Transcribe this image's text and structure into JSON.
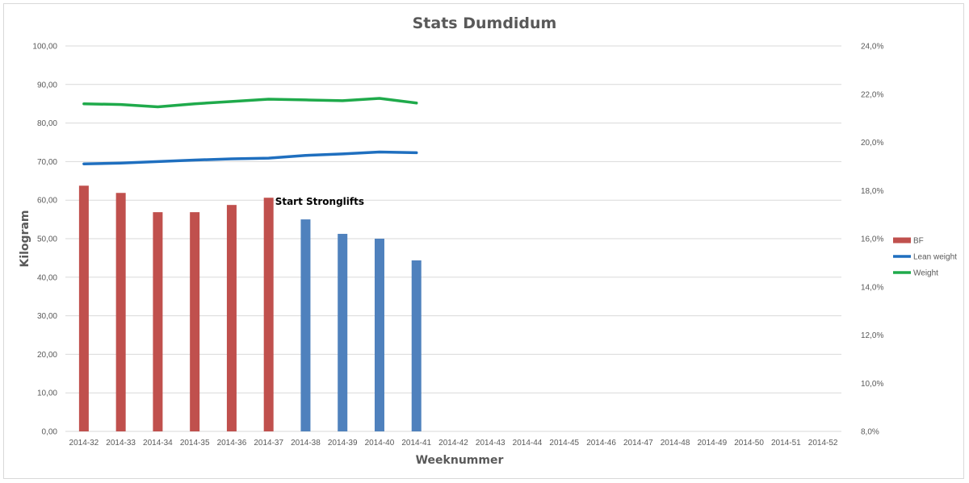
{
  "chart_data": {
    "type": "bar",
    "title": "Stats Dumdidum",
    "xlabel": "Weeknummer",
    "ylabel": "Kilogram",
    "categories": [
      "2014-32",
      "2014-33",
      "2014-34",
      "2014-35",
      "2014-36",
      "2014-37",
      "2014-38",
      "2014-39",
      "2014-40",
      "2014-41",
      "2014-42",
      "2014-43",
      "2014-44",
      "2014-45",
      "2014-46",
      "2014-47",
      "2014-48",
      "2014-49",
      "2014-50",
      "2014-51",
      "2014-52"
    ],
    "ylim": [
      0,
      100
    ],
    "y_ticks": [
      "0,00",
      "10,00",
      "20,00",
      "30,00",
      "40,00",
      "50,00",
      "60,00",
      "70,00",
      "80,00",
      "90,00",
      "100,00"
    ],
    "y2lim": [
      0.08,
      0.24
    ],
    "y2_ticks": [
      "8,0%",
      "10,0%",
      "12,0%",
      "14,0%",
      "16,0%",
      "18,0%",
      "20,0%",
      "22,0%",
      "24,0%"
    ],
    "grid": true,
    "legend_position": "right",
    "series": [
      {
        "name": "BF",
        "type": "bar",
        "axis": "secondary",
        "values": [
          0.182,
          0.179,
          0.171,
          0.171,
          0.174,
          0.177,
          0.168,
          0.162,
          0.16,
          0.151,
          null,
          null,
          null,
          null,
          null,
          null,
          null,
          null,
          null,
          null,
          null
        ],
        "bar_colors": [
          "#c0504d",
          "#c0504d",
          "#c0504d",
          "#c0504d",
          "#c0504d",
          "#c0504d",
          "#4f81bd",
          "#4f81bd",
          "#4f81bd",
          "#4f81bd"
        ]
      },
      {
        "name": "Lean weight",
        "type": "line",
        "axis": "primary",
        "color": "#1f6fbf",
        "values": [
          69.4,
          69.6,
          70.0,
          70.4,
          70.7,
          70.9,
          71.6,
          72.0,
          72.5,
          72.3,
          null,
          null,
          null,
          null,
          null,
          null,
          null,
          null,
          null,
          null,
          null
        ]
      },
      {
        "name": "Weight",
        "type": "line",
        "axis": "primary",
        "color": "#1faa4b",
        "values": [
          85.0,
          84.8,
          84.2,
          85.0,
          85.6,
          86.2,
          86.0,
          85.8,
          86.4,
          85.2,
          null,
          null,
          null,
          null,
          null,
          null,
          null,
          null,
          null,
          null,
          null
        ]
      }
    ],
    "annotations": [
      {
        "text": "Start Stronglifts",
        "category": "2014-37"
      }
    ],
    "colors": {
      "bf_before": "#c0504d",
      "bf_after": "#4f81bd",
      "gridline": "#d9d9d9"
    }
  }
}
